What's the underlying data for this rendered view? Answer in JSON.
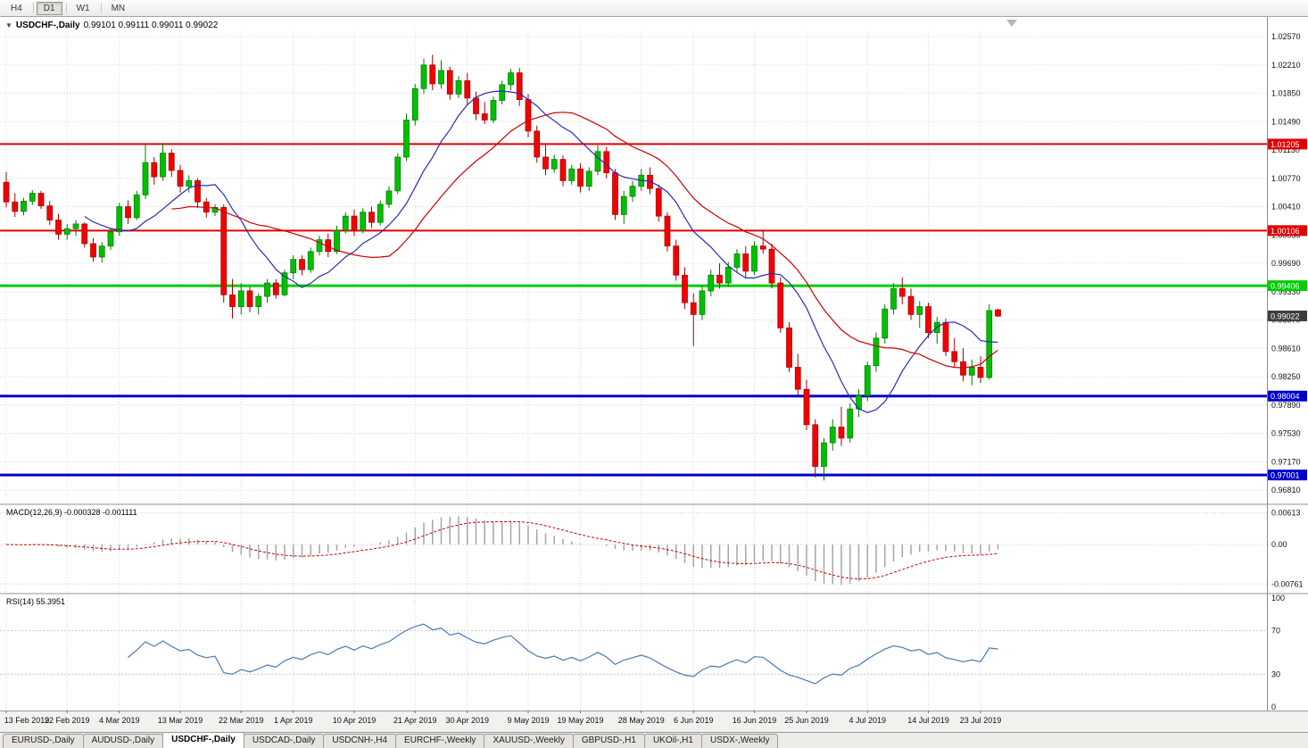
{
  "toolbar": {
    "timeframes": [
      "H4",
      "D1",
      "W1",
      "MN"
    ],
    "active": "D1"
  },
  "chart": {
    "title": "USDCHF-,Daily",
    "ohlc_line": "0.99101 0.99111 0.99011 0.99022",
    "collapse_arrow": "▼",
    "price_ticks": [
      "1.02570",
      "1.02210",
      "1.01850",
      "1.01490",
      "1.01130",
      "1.00770",
      "1.00410",
      "1.00050",
      "0.99690",
      "0.99330",
      "0.98970",
      "0.98610",
      "0.98250",
      "0.97890",
      "0.97530",
      "0.97170",
      "0.96810"
    ],
    "levels": [
      {
        "price": 1.01205,
        "label": "1.01205",
        "color": "#e00000",
        "width": 2
      },
      {
        "price": 1.00106,
        "label": "1.00106",
        "color": "#e00000",
        "width": 2
      },
      {
        "price": 0.99406,
        "label": "0.99406",
        "color": "#00cc00",
        "width": 3
      },
      {
        "price": 0.98004,
        "label": "0.98004",
        "color": "#0000cd",
        "width": 3
      },
      {
        "price": 0.97001,
        "label": "0.97001",
        "color": "#0000cd",
        "width": 3
      }
    ],
    "current_price": {
      "value": 0.99022,
      "label": "0.99022",
      "bg": "#3d3d3d"
    },
    "date_ticks": [
      {
        "label": "13 Feb 2019",
        "i": 0
      },
      {
        "label": "22 Feb 2019",
        "i": 7
      },
      {
        "label": "4 Mar 2019",
        "i": 13
      },
      {
        "label": "13 Mar 2019",
        "i": 20
      },
      {
        "label": "22 Mar 2019",
        "i": 27
      },
      {
        "label": "1 Apr 2019",
        "i": 33
      },
      {
        "label": "10 Apr 2019",
        "i": 40
      },
      {
        "label": "21 Apr 2019",
        "i": 47
      },
      {
        "label": "30 Apr 2019",
        "i": 53
      },
      {
        "label": "9 May 2019",
        "i": 60
      },
      {
        "label": "19 May 2019",
        "i": 66
      },
      {
        "label": "28 May 2019",
        "i": 73
      },
      {
        "label": "6 Jun 2019",
        "i": 79
      },
      {
        "label": "16 Jun 2019",
        "i": 86
      },
      {
        "label": "25 Jun 2019",
        "i": 92
      },
      {
        "label": "4 Jul 2019",
        "i": 99
      },
      {
        "label": "14 Jul 2019",
        "i": 106
      },
      {
        "label": "23 Jul 2019",
        "i": 112
      }
    ]
  },
  "macd": {
    "label": "MACD(12,26,9) -0.000328 -0.001111",
    "ticks": [
      {
        "label": "0.00613",
        "v": 0.00613
      },
      {
        "label": "0.00",
        "v": 0
      },
      {
        "label": "-0.00761",
        "v": -0.00761
      }
    ],
    "range": {
      "max": 0.0069,
      "min": -0.0086
    },
    "bar_color": "#a6a6a6",
    "signal_color": "#cc0000",
    "params": {
      "fast": 12,
      "slow": 26,
      "signal": 9
    }
  },
  "rsi": {
    "label": "RSI(14) 55.3951",
    "period": 14,
    "line_color": "#4a7ab5",
    "ticks": [
      {
        "label": "100",
        "v": 100
      },
      {
        "label": "70",
        "v": 70
      },
      {
        "label": "30",
        "v": 30
      },
      {
        "label": "0",
        "v": 0
      }
    ]
  },
  "tabs": {
    "active_index": 2,
    "items": [
      {
        "label": "EURUSD-,Daily"
      },
      {
        "label": "AUDUSD-,Daily"
      },
      {
        "label": "USDCHF-,Daily"
      },
      {
        "label": "USDCAD-,Daily"
      },
      {
        "label": "USDCNH-,H4"
      },
      {
        "label": "EURCHF-,Weekly"
      },
      {
        "label": "XAUUSD-,Weekly"
      },
      {
        "label": "GBPUSD-,H1"
      },
      {
        "label": "UKOil-,H1"
      },
      {
        "label": "USDX-,Weekly"
      }
    ]
  },
  "chart_data": {
    "type": "candlestick",
    "symbol": "USDCHF-",
    "timeframe": "Daily",
    "title": "USDCHF-,Daily",
    "ohlc_current": {
      "open": 0.99101,
      "high": 0.99111,
      "low": 0.99011,
      "close": 0.99022
    },
    "y_axis": {
      "max": 1.0282,
      "min": 0.9664
    },
    "colors": {
      "up": "#00c000",
      "up_border": "#007a00",
      "down": "#f40000",
      "down_border": "#a50000"
    },
    "ma": [
      {
        "period": 10,
        "color": "#2b2bb4"
      },
      {
        "period": 20,
        "color": "#cc0000"
      }
    ],
    "candles": [
      [
        1.0072,
        1.0085,
        1.004,
        1.0047
      ],
      [
        1.0047,
        1.0058,
        1.0028,
        1.0035
      ],
      [
        1.0035,
        1.0052,
        1.003,
        1.0048
      ],
      [
        1.0048,
        1.0062,
        1.0043,
        1.0058
      ],
      [
        1.0058,
        1.0061,
        1.0038,
        1.0042
      ],
      [
        1.0042,
        1.0048,
        1.0018,
        1.0024
      ],
      [
        1.0024,
        1.0032,
        0.9999,
        1.0006
      ],
      [
        1.0006,
        1.0019,
        0.9999,
        1.0013
      ],
      [
        1.0013,
        1.0024,
        1.0004,
        1.0019
      ],
      [
        1.0019,
        1.0021,
        0.9989,
        0.9994
      ],
      [
        0.9994,
        1.0001,
        0.9971,
        0.9977
      ],
      [
        0.9977,
        0.9996,
        0.997,
        0.9991
      ],
      [
        0.9991,
        1.0014,
        0.9986,
        1.0009
      ],
      [
        1.0009,
        1.0046,
        1.0004,
        1.0041
      ],
      [
        1.0041,
        1.0049,
        1.0019,
        1.0027
      ],
      [
        1.0027,
        1.0061,
        1.0024,
        1.0056
      ],
      [
        1.0056,
        1.0121,
        1.0051,
        1.0097
      ],
      [
        1.0097,
        1.0104,
        1.0069,
        1.0079
      ],
      [
        1.0079,
        1.0122,
        1.0074,
        1.0109
      ],
      [
        1.0109,
        1.0114,
        1.0079,
        1.0087
      ],
      [
        1.0087,
        1.0094,
        1.0059,
        1.0067
      ],
      [
        1.0067,
        1.0081,
        1.0059,
        1.0074
      ],
      [
        1.0074,
        1.0077,
        1.0039,
        1.0047
      ],
      [
        1.0047,
        1.0052,
        1.0027,
        1.0034
      ],
      [
        1.0034,
        1.0044,
        1.0029,
        1.004
      ],
      [
        1.004,
        1.0044,
        0.9919,
        0.9929
      ],
      [
        0.9929,
        0.9949,
        0.9899,
        0.9914
      ],
      [
        0.9914,
        0.9944,
        0.9904,
        0.9934
      ],
      [
        0.9934,
        0.9939,
        0.9907,
        0.9914
      ],
      [
        0.9914,
        0.9931,
        0.9904,
        0.9927
      ],
      [
        0.9927,
        0.9949,
        0.9919,
        0.9944
      ],
      [
        0.9944,
        0.9949,
        0.9924,
        0.9929
      ],
      [
        0.9929,
        0.9961,
        0.9927,
        0.9957
      ],
      [
        0.9957,
        0.9979,
        0.9949,
        0.9974
      ],
      [
        0.9974,
        0.9979,
        0.9954,
        0.9961
      ],
      [
        0.9961,
        0.9989,
        0.9957,
        0.9984
      ],
      [
        0.9984,
        1.0004,
        0.9979,
        0.9999
      ],
      [
        0.9999,
        1.0007,
        0.9977,
        0.9984
      ],
      [
        0.9984,
        1.0017,
        0.9981,
        1.0011
      ],
      [
        1.0011,
        1.0034,
        1.0007,
        1.0029
      ],
      [
        1.0029,
        1.0037,
        1.0004,
        1.0011
      ],
      [
        1.0011,
        1.0039,
        1.0007,
        1.0034
      ],
      [
        1.0034,
        1.0041,
        1.0014,
        1.0021
      ],
      [
        1.0021,
        1.0049,
        1.0017,
        1.0044
      ],
      [
        1.0044,
        1.0067,
        1.0039,
        1.0061
      ],
      [
        1.0061,
        1.0109,
        1.0057,
        1.0104
      ],
      [
        1.0104,
        1.0159,
        1.0099,
        1.0151
      ],
      [
        1.0151,
        1.0197,
        1.0144,
        1.0191
      ],
      [
        1.0191,
        1.0229,
        1.0184,
        1.0221
      ],
      [
        1.0221,
        1.0234,
        1.0189,
        1.0197
      ],
      [
        1.0197,
        1.0227,
        1.0191,
        1.0214
      ],
      [
        1.0214,
        1.0219,
        1.0177,
        1.0184
      ],
      [
        1.0184,
        1.0207,
        1.0179,
        1.0201
      ],
      [
        1.0201,
        1.0211,
        1.0171,
        1.0179
      ],
      [
        1.0179,
        1.0187,
        1.0151,
        1.0159
      ],
      [
        1.0159,
        1.0174,
        1.0146,
        1.0151
      ],
      [
        1.0151,
        1.0181,
        1.0147,
        1.0176
      ],
      [
        1.0176,
        1.0201,
        1.0171,
        1.0196
      ],
      [
        1.0196,
        1.0216,
        1.0189,
        1.0211
      ],
      [
        1.0211,
        1.0217,
        1.0169,
        1.0177
      ],
      [
        1.0177,
        1.0184,
        1.0129,
        1.0137
      ],
      [
        1.0137,
        1.0144,
        1.0097,
        1.0104
      ],
      [
        1.0104,
        1.0121,
        1.0081,
        1.0089
      ],
      [
        1.0089,
        1.0107,
        1.0084,
        1.0101
      ],
      [
        1.0101,
        1.0106,
        1.0067,
        1.0074
      ],
      [
        1.0074,
        1.0094,
        1.0069,
        1.0089
      ],
      [
        1.0089,
        1.0096,
        1.0059,
        1.0067
      ],
      [
        1.0067,
        1.0091,
        1.0061,
        1.0086
      ],
      [
        1.0086,
        1.0119,
        1.0081,
        1.0111
      ],
      [
        1.0111,
        1.0117,
        1.0077,
        1.0084
      ],
      [
        1.0084,
        1.0089,
        1.0024,
        1.0031
      ],
      [
        1.0031,
        1.0061,
        1.0019,
        1.0054
      ],
      [
        1.0054,
        1.0074,
        1.0047,
        1.0067
      ],
      [
        1.0067,
        1.0089,
        1.0061,
        1.0081
      ],
      [
        1.0081,
        1.0091,
        1.0057,
        1.0064
      ],
      [
        1.0064,
        1.0069,
        1.0022,
        1.0029
      ],
      [
        1.0029,
        1.0034,
        0.9984,
        0.9991
      ],
      [
        0.9991,
        0.9999,
        0.9947,
        0.9954
      ],
      [
        0.9954,
        0.9964,
        0.9911,
        0.9919
      ],
      [
        0.9919,
        0.9931,
        0.9864,
        0.9904
      ],
      [
        0.9904,
        0.9941,
        0.9897,
        0.9934
      ],
      [
        0.9934,
        0.9961,
        0.9927,
        0.9954
      ],
      [
        0.9954,
        0.9969,
        0.9937,
        0.9944
      ],
      [
        0.9944,
        0.9971,
        0.9939,
        0.9964
      ],
      [
        0.9964,
        0.9987,
        0.9957,
        0.9981
      ],
      [
        0.9981,
        0.9991,
        0.9951,
        0.9959
      ],
      [
        0.9959,
        0.9997,
        0.9954,
        0.9991
      ],
      [
        0.9991,
        1.0011,
        0.9981,
        0.9987
      ],
      [
        0.9987,
        0.9994,
        0.9937,
        0.9944
      ],
      [
        0.9944,
        0.9951,
        0.9881,
        0.9887
      ],
      [
        0.9887,
        0.9894,
        0.9831,
        0.9837
      ],
      [
        0.9837,
        0.9854,
        0.9801,
        0.9809
      ],
      [
        0.9809,
        0.9821,
        0.9757,
        0.9764
      ],
      [
        0.9764,
        0.9771,
        0.9697,
        0.9711
      ],
      [
        0.9711,
        0.9747,
        0.9693,
        0.9741
      ],
      [
        0.9741,
        0.9771,
        0.9731,
        0.9761
      ],
      [
        0.9761,
        0.9787,
        0.9737,
        0.9747
      ],
      [
        0.9747,
        0.9791,
        0.9741,
        0.9784
      ],
      [
        0.9784,
        0.9809,
        0.9774,
        0.9801
      ],
      [
        0.9801,
        0.9844,
        0.9794,
        0.9839
      ],
      [
        0.9839,
        0.9881,
        0.9831,
        0.9874
      ],
      [
        0.9874,
        0.9917,
        0.9867,
        0.9911
      ],
      [
        0.9911,
        0.9944,
        0.9904,
        0.9937
      ],
      [
        0.9937,
        0.9951,
        0.9917,
        0.9927
      ],
      [
        0.9927,
        0.9937,
        0.9897,
        0.9904
      ],
      [
        0.9904,
        0.9921,
        0.9887,
        0.9914
      ],
      [
        0.9914,
        0.9919,
        0.9874,
        0.9881
      ],
      [
        0.9881,
        0.9901,
        0.9867,
        0.9894
      ],
      [
        0.9894,
        0.9899,
        0.9851,
        0.9857
      ],
      [
        0.9857,
        0.9874,
        0.9837,
        0.9844
      ],
      [
        0.9844,
        0.9861,
        0.9819,
        0.9827
      ],
      [
        0.9827,
        0.9847,
        0.9814,
        0.9837
      ],
      [
        0.9837,
        0.9851,
        0.9817,
        0.9824
      ],
      [
        0.9824,
        0.9917,
        0.9821,
        0.9909
      ],
      [
        0.991,
        0.9911,
        0.9901,
        0.9902
      ]
    ]
  }
}
